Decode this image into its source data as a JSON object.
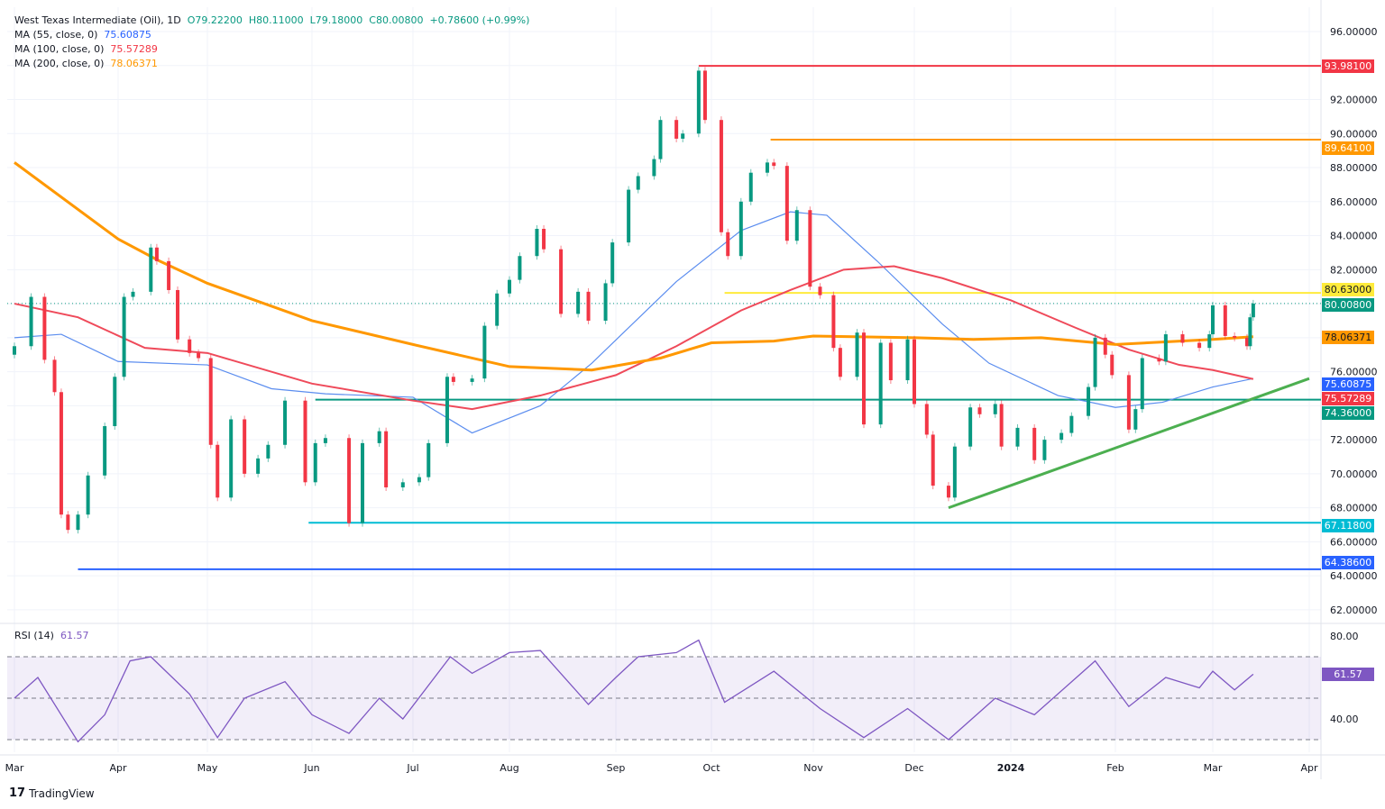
{
  "header": {
    "symbol": "West Texas Intermediate (Oil), 1D",
    "open": "O79.22200",
    "high": "H80.11000",
    "low": "L79.18000",
    "close": "C80.00800",
    "change": "+0.78600 (+0.99%)"
  },
  "indicators": [
    {
      "label": "MA (55, close, 0)",
      "value": "75.60875",
      "color": "#2962ff"
    },
    {
      "label": "MA (100, close, 0)",
      "value": "75.57289",
      "color": "#f23645"
    },
    {
      "label": "MA (200, close, 0)",
      "value": "78.06371",
      "color": "#ff9800"
    }
  ],
  "rsi_panel": {
    "label": "RSI (14)",
    "value": "61.57",
    "ticks": [
      "80.00",
      "40.00"
    ],
    "color": "#7e57c2"
  },
  "branding": "TradingView",
  "chart_data": {
    "type": "candlestick",
    "price_axis": {
      "range": [
        62,
        96
      ],
      "ticks": [
        "96.00000",
        "92.00000",
        "90.00000",
        "88.00000",
        "86.00000",
        "84.00000",
        "82.00000",
        "76.00000",
        "72.00000",
        "70.00000",
        "68.00000",
        "66.00000",
        "64.00000",
        "62.00000"
      ]
    },
    "time_axis": {
      "ticks": [
        [
          "2023-03-01",
          "Mar"
        ],
        [
          "2023-04-01",
          "Apr"
        ],
        [
          "2023-05-01",
          "May"
        ],
        [
          "2023-06-01",
          "Jun"
        ],
        [
          "2023-07-01",
          "Jul"
        ],
        [
          "2023-08-01",
          "Aug"
        ],
        [
          "2023-09-01",
          "Sep"
        ],
        [
          "2023-10-01",
          "Oct"
        ],
        [
          "2023-11-01",
          "Nov"
        ],
        [
          "2023-12-01",
          "Dec"
        ],
        [
          "2024-01-01",
          "2024"
        ],
        [
          "2024-02-01",
          "Feb"
        ],
        [
          "2024-03-01",
          "Mar"
        ],
        [
          "2024-04-01",
          "Apr"
        ]
      ]
    },
    "close": [
      [
        "2023-03-01",
        77.5
      ],
      [
        "2023-03-06",
        80.4
      ],
      [
        "2023-03-10",
        76.7
      ],
      [
        "2023-03-13",
        74.8
      ],
      [
        "2023-03-15",
        67.6
      ],
      [
        "2023-03-17",
        66.7
      ],
      [
        "2023-03-20",
        67.6
      ],
      [
        "2023-03-23",
        69.9
      ],
      [
        "2023-03-28",
        72.8
      ],
      [
        "2023-03-31",
        75.7
      ],
      [
        "2023-04-03",
        80.4
      ],
      [
        "2023-04-06",
        80.7
      ],
      [
        "2023-04-12",
        83.3
      ],
      [
        "2023-04-14",
        82.5
      ],
      [
        "2023-04-18",
        80.8
      ],
      [
        "2023-04-21",
        77.9
      ],
      [
        "2023-04-25",
        77.1
      ],
      [
        "2023-04-28",
        76.8
      ],
      [
        "2023-05-02",
        71.7
      ],
      [
        "2023-05-04",
        68.6
      ],
      [
        "2023-05-08",
        73.2
      ],
      [
        "2023-05-12",
        70.0
      ],
      [
        "2023-05-16",
        70.9
      ],
      [
        "2023-05-19",
        71.7
      ],
      [
        "2023-05-24",
        74.3
      ],
      [
        "2023-05-30",
        69.5
      ],
      [
        "2023-06-02",
        71.8
      ],
      [
        "2023-06-05",
        72.1
      ],
      [
        "2023-06-12",
        67.1
      ],
      [
        "2023-06-16",
        71.8
      ],
      [
        "2023-06-21",
        72.5
      ],
      [
        "2023-06-23",
        69.2
      ],
      [
        "2023-06-28",
        69.5
      ],
      [
        "2023-07-03",
        69.8
      ],
      [
        "2023-07-06",
        71.8
      ],
      [
        "2023-07-12",
        75.7
      ],
      [
        "2023-07-14",
        75.4
      ],
      [
        "2023-07-20",
        75.6
      ],
      [
        "2023-07-24",
        78.7
      ],
      [
        "2023-07-28",
        80.6
      ],
      [
        "2023-08-01",
        81.4
      ],
      [
        "2023-08-04",
        82.8
      ],
      [
        "2023-08-09",
        84.4
      ],
      [
        "2023-08-11",
        83.2
      ],
      [
        "2023-08-16",
        79.4
      ],
      [
        "2023-08-21",
        80.7
      ],
      [
        "2023-08-24",
        79.0
      ],
      [
        "2023-08-29",
        81.2
      ],
      [
        "2023-08-31",
        83.6
      ],
      [
        "2023-09-05",
        86.7
      ],
      [
        "2023-09-08",
        87.5
      ],
      [
        "2023-09-13",
        88.5
      ],
      [
        "2023-09-15",
        90.8
      ],
      [
        "2023-09-20",
        89.7
      ],
      [
        "2023-09-22",
        90.0
      ],
      [
        "2023-09-27",
        93.7
      ],
      [
        "2023-09-29",
        90.8
      ],
      [
        "2023-10-04",
        84.2
      ],
      [
        "2023-10-06",
        82.8
      ],
      [
        "2023-10-10",
        86.0
      ],
      [
        "2023-10-13",
        87.7
      ],
      [
        "2023-10-18",
        88.3
      ],
      [
        "2023-10-20",
        88.1
      ],
      [
        "2023-10-24",
        83.7
      ],
      [
        "2023-10-27",
        85.5
      ],
      [
        "2023-10-31",
        81.0
      ],
      [
        "2023-11-03",
        80.5
      ],
      [
        "2023-11-07",
        77.4
      ],
      [
        "2023-11-09",
        75.7
      ],
      [
        "2023-11-14",
        78.3
      ],
      [
        "2023-11-16",
        72.9
      ],
      [
        "2023-11-21",
        77.7
      ],
      [
        "2023-11-24",
        75.5
      ],
      [
        "2023-11-29",
        77.9
      ],
      [
        "2023-12-01",
        74.1
      ],
      [
        "2023-12-05",
        72.3
      ],
      [
        "2023-12-07",
        69.3
      ],
      [
        "2023-12-12",
        68.6
      ],
      [
        "2023-12-14",
        71.6
      ],
      [
        "2023-12-19",
        73.9
      ],
      [
        "2023-12-22",
        73.5
      ],
      [
        "2023-12-27",
        74.1
      ],
      [
        "2023-12-29",
        71.6
      ],
      [
        "2024-01-03",
        72.7
      ],
      [
        "2024-01-08",
        70.8
      ],
      [
        "2024-01-11",
        72.0
      ],
      [
        "2024-01-16",
        72.4
      ],
      [
        "2024-01-19",
        73.4
      ],
      [
        "2024-01-24",
        75.1
      ],
      [
        "2024-01-26",
        78.0
      ],
      [
        "2024-01-29",
        77.0
      ],
      [
        "2024-01-31",
        75.8
      ],
      [
        "2024-02-05",
        72.6
      ],
      [
        "2024-02-07",
        73.8
      ],
      [
        "2024-02-09",
        76.8
      ],
      [
        "2024-02-14",
        76.6
      ],
      [
        "2024-02-16",
        78.2
      ],
      [
        "2024-02-21",
        77.7
      ],
      [
        "2024-02-26",
        77.4
      ],
      [
        "2024-02-29",
        78.2
      ],
      [
        "2024-03-01",
        79.9
      ],
      [
        "2024-03-05",
        78.1
      ],
      [
        "2024-03-08",
        78.0
      ],
      [
        "2024-03-12",
        77.5
      ],
      [
        "2024-03-13",
        79.2
      ],
      [
        "2024-03-14",
        80.008
      ]
    ],
    "series": [
      {
        "name": "MA (55, close, 0)",
        "color": "#5b8def",
        "points": [
          [
            "2023-03-01",
            78.0
          ],
          [
            "2023-03-15",
            78.2
          ],
          [
            "2023-04-01",
            76.6
          ],
          [
            "2023-05-01",
            76.4
          ],
          [
            "2023-05-20",
            75.0
          ],
          [
            "2023-06-05",
            74.7
          ],
          [
            "2023-07-01",
            74.5
          ],
          [
            "2023-07-20",
            72.4
          ],
          [
            "2023-08-10",
            74.0
          ],
          [
            "2023-08-25",
            76.5
          ],
          [
            "2023-09-20",
            81.3
          ],
          [
            "2023-10-10",
            84.3
          ],
          [
            "2023-10-25",
            85.4
          ],
          [
            "2023-11-05",
            85.2
          ],
          [
            "2023-11-20",
            82.5
          ],
          [
            "2023-12-10",
            78.8
          ],
          [
            "2023-12-25",
            76.5
          ],
          [
            "2024-01-15",
            74.6
          ],
          [
            "2024-02-01",
            73.9
          ],
          [
            "2024-02-15",
            74.2
          ],
          [
            "2024-03-01",
            75.1
          ],
          [
            "2024-03-14",
            75.6
          ]
        ]
      },
      {
        "name": "MA (100, close, 0)",
        "color": "#ef4a5a",
        "points": [
          [
            "2023-03-01",
            80.0
          ],
          [
            "2023-03-20",
            79.2
          ],
          [
            "2023-04-10",
            77.4
          ],
          [
            "2023-05-01",
            77.1
          ],
          [
            "2023-06-01",
            75.3
          ],
          [
            "2023-07-01",
            74.3
          ],
          [
            "2023-07-20",
            73.8
          ],
          [
            "2023-08-10",
            74.6
          ],
          [
            "2023-09-01",
            75.8
          ],
          [
            "2023-09-20",
            77.5
          ],
          [
            "2023-10-10",
            79.6
          ],
          [
            "2023-10-25",
            80.8
          ],
          [
            "2023-11-10",
            82.0
          ],
          [
            "2023-11-25",
            82.2
          ],
          [
            "2023-12-10",
            81.5
          ],
          [
            "2024-01-01",
            80.2
          ],
          [
            "2024-01-20",
            78.6
          ],
          [
            "2024-02-05",
            77.3
          ],
          [
            "2024-02-20",
            76.4
          ],
          [
            "2024-03-01",
            76.1
          ],
          [
            "2024-03-14",
            75.57
          ]
        ]
      },
      {
        "name": "MA (200, close, 0)",
        "color": "#ff9800",
        "points": [
          [
            "2023-03-01",
            88.3
          ],
          [
            "2023-04-01",
            83.8
          ],
          [
            "2023-04-15",
            82.5
          ],
          [
            "2023-05-01",
            81.2
          ],
          [
            "2023-06-01",
            79.0
          ],
          [
            "2023-07-01",
            77.6
          ],
          [
            "2023-08-01",
            76.3
          ],
          [
            "2023-08-25",
            76.1
          ],
          [
            "2023-09-15",
            76.8
          ],
          [
            "2023-10-01",
            77.7
          ],
          [
            "2023-10-20",
            77.8
          ],
          [
            "2023-11-01",
            78.1
          ],
          [
            "2023-12-01",
            78.0
          ],
          [
            "2023-12-20",
            77.9
          ],
          [
            "2024-01-10",
            78.0
          ],
          [
            "2024-02-01",
            77.6
          ],
          [
            "2024-03-01",
            77.9
          ],
          [
            "2024-03-14",
            78.06
          ]
        ]
      }
    ],
    "levels": [
      {
        "value": "93.98100",
        "from": "2023-09-27",
        "color": "#f23645"
      },
      {
        "value": "89.64100",
        "from": "2023-10-19",
        "color": "#ff9800"
      },
      {
        "value": "80.63000",
        "from": "2023-10-05",
        "color": "#ffeb3b"
      },
      {
        "value": "74.36000",
        "from": "2023-06-02",
        "color": "#089981"
      },
      {
        "value": "67.11800",
        "from": "2023-05-31",
        "color": "#00bcd4"
      },
      {
        "value": "64.38600",
        "from": "2023-03-20",
        "color": "#2962ff"
      }
    ],
    "price_badges": [
      {
        "value": "80.00800",
        "color": "#089981"
      },
      {
        "value": "78.06371",
        "color": "#ff9800"
      },
      {
        "value": "75.60875",
        "color": "#2962ff"
      },
      {
        "value": "75.57289",
        "color": "#f23645"
      }
    ],
    "trendline": {
      "color": "#4caf50",
      "from": [
        "2023-12-12",
        68.0
      ],
      "to": [
        "2024-04-01",
        75.6
      ]
    },
    "rsi": {
      "range": [
        20,
        90
      ],
      "bands": [
        30,
        50,
        70
      ],
      "points": [
        [
          "2023-03-01",
          50
        ],
        [
          "2023-03-08",
          60
        ],
        [
          "2023-03-20",
          29
        ],
        [
          "2023-03-28",
          42
        ],
        [
          "2023-04-05",
          68
        ],
        [
          "2023-04-12",
          70
        ],
        [
          "2023-04-25",
          52
        ],
        [
          "2023-05-04",
          31
        ],
        [
          "2023-05-12",
          50
        ],
        [
          "2023-05-24",
          58
        ],
        [
          "2023-06-01",
          42
        ],
        [
          "2023-06-12",
          33
        ],
        [
          "2023-06-21",
          50
        ],
        [
          "2023-06-28",
          40
        ],
        [
          "2023-07-13",
          70
        ],
        [
          "2023-07-20",
          62
        ],
        [
          "2023-08-01",
          72
        ],
        [
          "2023-08-10",
          73
        ],
        [
          "2023-08-24",
          47
        ],
        [
          "2023-09-01",
          60
        ],
        [
          "2023-09-08",
          70
        ],
        [
          "2023-09-20",
          72
        ],
        [
          "2023-09-27",
          78
        ],
        [
          "2023-10-05",
          48
        ],
        [
          "2023-10-20",
          63
        ],
        [
          "2023-11-03",
          45
        ],
        [
          "2023-11-16",
          31
        ],
        [
          "2023-11-29",
          45
        ],
        [
          "2023-12-12",
          30
        ],
        [
          "2023-12-27",
          50
        ],
        [
          "2024-01-08",
          42
        ],
        [
          "2024-01-26",
          68
        ],
        [
          "2024-02-05",
          46
        ],
        [
          "2024-02-16",
          60
        ],
        [
          "2024-02-26",
          55
        ],
        [
          "2024-03-01",
          63
        ],
        [
          "2024-03-08",
          54
        ],
        [
          "2024-03-14",
          61.57
        ]
      ]
    }
  }
}
